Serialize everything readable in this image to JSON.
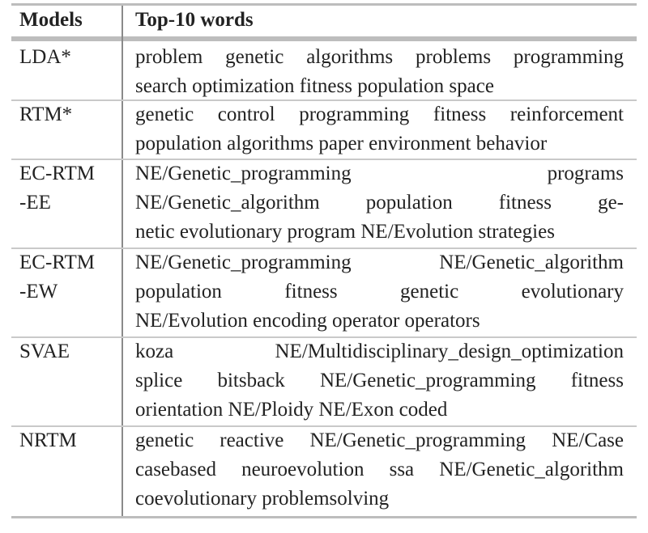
{
  "table": {
    "headers": [
      "Models",
      "Top-10 words"
    ],
    "rows": [
      {
        "model_lines": [
          "LDA*"
        ],
        "word_lines": [
          "problem genetic algorithms problems programming",
          "search optimization fitness population space"
        ]
      },
      {
        "model_lines": [
          "RTM*"
        ],
        "word_lines": [
          "genetic control programming fitness reinforcement",
          "population algorithms paper environment behavior"
        ]
      },
      {
        "model_lines": [
          "EC-RTM",
          "-EE"
        ],
        "word_lines": [
          "NE/Genetic_programming programs",
          "NE/Genetic_algorithm population fitness ge-",
          "netic evolutionary program NE/Evolution strategies"
        ]
      },
      {
        "model_lines": [
          "EC-RTM",
          "-EW"
        ],
        "word_lines": [
          "NE/Genetic_programming NE/Genetic_algorithm",
          "population fitness genetic evolutionary",
          "NE/Evolution encoding operator operators"
        ]
      },
      {
        "model_lines": [
          "SVAE"
        ],
        "word_lines": [
          "koza NE/Multidisciplinary_design_optimization",
          "splice bitsback NE/Genetic_programming fitness",
          "orientation NE/Ploidy NE/Exon coded"
        ]
      },
      {
        "model_lines": [
          "NRTM"
        ],
        "word_lines": [
          "genetic reactive NE/Genetic_programming NE/Case",
          "casebased neuroevolution ssa NE/Genetic_algorithm",
          "coevolutionary problemsolving"
        ]
      }
    ]
  }
}
